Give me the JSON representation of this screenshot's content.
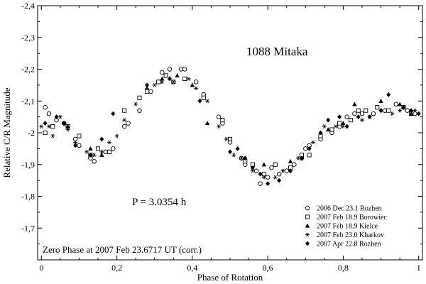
{
  "chart_data": {
    "type": "scatter",
    "title": "1088 Mitaka",
    "period_annotation": "P = 3.0354 h",
    "zero_phase_annotation": "Zero Phase at 2007 Feb 23.6717 UT (corr.)",
    "xlabel": "Phase of Rotation",
    "ylabel": "Relative C/R Magnitude",
    "xlim": [
      -0.01,
      1.01
    ],
    "ylim": [
      -1.6,
      -2.4
    ],
    "x_ticks": [
      {
        "value": 0,
        "label": "0"
      },
      {
        "value": 0.2,
        "label": "0,2"
      },
      {
        "value": 0.4,
        "label": "0,4"
      },
      {
        "value": 0.6,
        "label": "0,6"
      },
      {
        "value": 0.8,
        "label": "0,8"
      },
      {
        "value": 1.0,
        "label": "1"
      }
    ],
    "y_ticks": [
      {
        "value": -1.7,
        "label": "-1,7"
      },
      {
        "value": -1.8,
        "label": "-1,8"
      },
      {
        "value": -1.9,
        "label": "-1,9"
      },
      {
        "value": -2.0,
        "label": "-2"
      },
      {
        "value": -2.1,
        "label": "-2,1"
      },
      {
        "value": -2.2,
        "label": "-2,2"
      },
      {
        "value": -2.3,
        "label": "-2,3"
      },
      {
        "value": -2.4,
        "label": "-2,4"
      }
    ],
    "legend_position": "bottom-right",
    "series": [
      {
        "name": "2006 Dec 23.1 Rozhen",
        "marker": "circle-open",
        "points": [
          [
            0.01,
            -2.08
          ],
          [
            0.02,
            -2.06
          ],
          [
            0.04,
            -2.04
          ],
          [
            0.06,
            -2.03
          ],
          [
            0.09,
            -1.98
          ],
          [
            0.1,
            -1.96
          ],
          [
            0.13,
            -1.92
          ],
          [
            0.14,
            -1.91
          ],
          [
            0.17,
            -1.94
          ],
          [
            0.19,
            -1.95
          ],
          [
            0.22,
            -2.02
          ],
          [
            0.23,
            -2.03
          ],
          [
            0.26,
            -2.07
          ],
          [
            0.29,
            -2.13
          ],
          [
            0.31,
            -2.16
          ],
          [
            0.32,
            -2.19
          ],
          [
            0.34,
            -2.2
          ],
          [
            0.37,
            -2.2
          ],
          [
            0.38,
            -2.2
          ],
          [
            0.41,
            -2.16
          ],
          [
            0.43,
            -2.12
          ],
          [
            0.47,
            -2.05
          ],
          [
            0.48,
            -2.03
          ],
          [
            0.5,
            -1.97
          ],
          [
            0.53,
            -1.92
          ],
          [
            0.54,
            -1.9
          ],
          [
            0.57,
            -1.88
          ],
          [
            0.58,
            -1.84
          ],
          [
            0.6,
            -1.86
          ],
          [
            0.61,
            -1.89
          ],
          [
            0.63,
            -1.87
          ],
          [
            0.65,
            -1.88
          ],
          [
            0.67,
            -1.9
          ],
          [
            0.69,
            -1.92
          ],
          [
            0.7,
            -1.95
          ],
          [
            0.71,
            -1.96
          ],
          [
            0.74,
            -1.98
          ],
          [
            0.77,
            -2.0
          ],
          [
            0.79,
            -2.02
          ],
          [
            0.81,
            -2.05
          ],
          [
            0.83,
            -2.06
          ],
          [
            0.85,
            -2.06
          ],
          [
            0.88,
            -2.06
          ],
          [
            0.91,
            -2.07
          ],
          [
            0.94,
            -2.09
          ],
          [
            0.97,
            -2.07
          ],
          [
            0.99,
            -2.06
          ]
        ]
      },
      {
        "name": "2007 Feb 18.9 Borowiec",
        "marker": "square-open",
        "points": [
          [
            0.01,
            -2.0
          ],
          [
            0.03,
            -2.02
          ],
          [
            0.07,
            -2.02
          ],
          [
            0.1,
            -1.99
          ],
          [
            0.13,
            -1.93
          ],
          [
            0.15,
            -1.95
          ],
          [
            0.18,
            -1.94
          ],
          [
            0.22,
            -2.07
          ],
          [
            0.26,
            -2.11
          ],
          [
            0.28,
            -2.13
          ],
          [
            0.31,
            -2.16
          ],
          [
            0.33,
            -2.18
          ],
          [
            0.35,
            -2.16
          ],
          [
            0.38,
            -2.17
          ],
          [
            0.43,
            -2.11
          ],
          [
            0.48,
            -2.04
          ],
          [
            0.5,
            -1.98
          ],
          [
            0.54,
            -1.91
          ],
          [
            0.56,
            -1.9
          ],
          [
            0.59,
            -1.87
          ],
          [
            0.62,
            -1.9
          ],
          [
            0.66,
            -1.89
          ],
          [
            0.69,
            -1.93
          ],
          [
            0.71,
            -1.93
          ],
          [
            0.74,
            -1.99
          ],
          [
            0.77,
            -2.01
          ],
          [
            0.79,
            -2.03
          ],
          [
            0.82,
            -2.04
          ],
          [
            0.84,
            -2.07
          ],
          [
            0.86,
            -2.07
          ],
          [
            0.89,
            -2.08
          ],
          [
            0.92,
            -2.07
          ],
          [
            0.96,
            -2.08
          ],
          [
            0.98,
            -2.06
          ]
        ]
      },
      {
        "name": "2007 Feb 18.9 Kielce",
        "marker": "triangle-filled",
        "points": [
          [
            0.07,
            -2.02
          ],
          [
            0.13,
            -1.95
          ],
          [
            0.16,
            -1.93
          ],
          [
            0.32,
            -2.17
          ],
          [
            0.36,
            -2.18
          ],
          [
            0.4,
            -2.15
          ],
          [
            0.44,
            -2.03
          ],
          [
            0.59,
            -1.9
          ],
          [
            0.66,
            -1.91
          ],
          [
            0.76,
            -2.01
          ],
          [
            0.8,
            -2.03
          ],
          [
            0.83,
            -2.09
          ],
          [
            0.9,
            -2.1
          ],
          [
            0.95,
            -2.09
          ],
          [
            0.98,
            -2.06
          ]
        ]
      },
      {
        "name": "2007 Feb 23.0 Kharkov",
        "marker": "asterisk",
        "points": [
          [
            0.0,
            -2.02
          ],
          [
            0.02,
            -2.02
          ],
          [
            0.03,
            -1.99
          ],
          [
            0.05,
            -2.05
          ],
          [
            0.07,
            -2.01
          ],
          [
            0.09,
            -1.97
          ],
          [
            0.12,
            -1.94
          ],
          [
            0.14,
            -1.93
          ],
          [
            0.16,
            -1.94
          ],
          [
            0.18,
            -1.97
          ],
          [
            0.2,
            -1.99
          ],
          [
            0.22,
            -2.04
          ],
          [
            0.25,
            -2.09
          ],
          [
            0.28,
            -2.14
          ],
          [
            0.3,
            -2.15
          ],
          [
            0.32,
            -2.16
          ],
          [
            0.35,
            -2.16
          ],
          [
            0.39,
            -2.17
          ],
          [
            0.41,
            -2.14
          ],
          [
            0.44,
            -2.1
          ],
          [
            0.47,
            -2.02
          ],
          [
            0.49,
            -1.98
          ],
          [
            0.51,
            -1.93
          ],
          [
            0.53,
            -1.92
          ],
          [
            0.56,
            -1.88
          ],
          [
            0.59,
            -1.86
          ],
          [
            0.62,
            -1.86
          ],
          [
            0.64,
            -1.88
          ],
          [
            0.68,
            -1.92
          ],
          [
            0.72,
            -1.97
          ],
          [
            0.75,
            -2.02
          ],
          [
            0.78,
            -2.02
          ],
          [
            0.8,
            -2.02
          ],
          [
            0.85,
            -2.04
          ],
          [
            0.87,
            -2.05
          ],
          [
            0.9,
            -2.07
          ],
          [
            0.93,
            -2.06
          ],
          [
            0.95,
            -2.07
          ],
          [
            0.99,
            -2.07
          ]
        ]
      },
      {
        "name": "2007 Apr 22.8 Rozhen",
        "marker": "diamond-filled",
        "points": [
          [
            0.01,
            -2.03
          ],
          [
            0.04,
            -2.05
          ],
          [
            0.06,
            -2.03
          ],
          [
            0.09,
            -1.96
          ],
          [
            0.13,
            -1.93
          ],
          [
            0.16,
            -1.98
          ],
          [
            0.19,
            -2.06
          ],
          [
            0.28,
            -2.15
          ],
          [
            0.34,
            -2.17
          ],
          [
            0.42,
            -2.1
          ],
          [
            0.5,
            -1.94
          ],
          [
            0.52,
            -1.95
          ],
          [
            0.54,
            -1.92
          ],
          [
            0.56,
            -1.89
          ],
          [
            0.58,
            -1.87
          ],
          [
            0.6,
            -1.84
          ],
          [
            0.63,
            -1.85
          ],
          [
            0.66,
            -1.88
          ],
          [
            0.69,
            -1.92
          ],
          [
            0.71,
            -1.95
          ],
          [
            0.74,
            -2.0
          ],
          [
            0.76,
            -2.04
          ],
          [
            0.79,
            -2.05
          ],
          [
            0.81,
            -2.02
          ],
          [
            0.84,
            -2.05
          ],
          [
            0.87,
            -2.05
          ],
          [
            0.9,
            -2.07
          ],
          [
            0.92,
            -2.12
          ],
          [
            0.96,
            -2.08
          ],
          [
            0.98,
            -2.07
          ],
          [
            1.0,
            -2.06
          ]
        ]
      }
    ]
  }
}
